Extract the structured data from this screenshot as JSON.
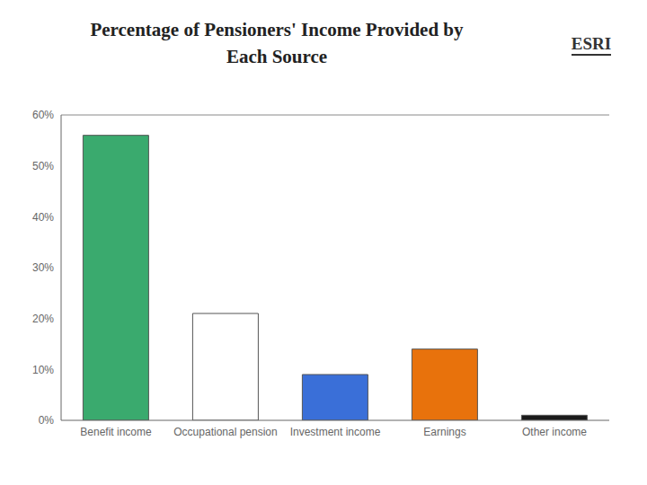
{
  "chart_data": {
    "type": "bar",
    "title": "Percentage of Pensioners' Income Provided by\nEach Source",
    "categories": [
      "Benefit income",
      "Occupational pension",
      "Investment income",
      "Earnings",
      "Other income"
    ],
    "values": [
      56,
      21,
      9,
      14,
      1
    ],
    "colors": [
      "#3aaa6e",
      "#ffffff",
      "#3a6fd8",
      "#e8720c",
      "#1a1a1a"
    ],
    "ylim": [
      0,
      60
    ],
    "yticks": [
      {
        "value": 0,
        "label": "0%"
      },
      {
        "value": 10,
        "label": "10%"
      },
      {
        "value": 20,
        "label": "20%"
      },
      {
        "value": 30,
        "label": "30%"
      },
      {
        "value": 40,
        "label": "40%"
      },
      {
        "value": 50,
        "label": "50%"
      },
      {
        "value": 60,
        "label": "60%"
      }
    ],
    "grid": false,
    "annotations": [
      "ESRI"
    ]
  }
}
